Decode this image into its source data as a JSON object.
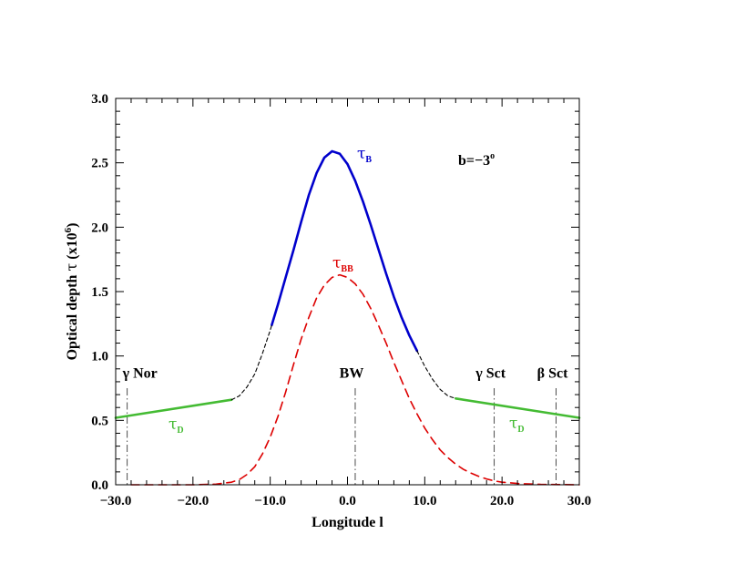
{
  "chart_data": {
    "type": "line",
    "xlabel": "Longitude l",
    "ylabel_main": "Optical depth ",
    "ylabel_tau": "τ",
    "ylabel_factor": " (x10",
    "ylabel_exp": "6",
    "ylabel_close": ")",
    "xlim": [
      -30,
      30
    ],
    "ylim": [
      0,
      3
    ],
    "grid": false,
    "x_ticks": [
      -30,
      -20,
      -10,
      0,
      10,
      20,
      30
    ],
    "x_tick_labels": [
      "−30.0",
      "−20.0",
      "−10.0",
      "0.0",
      "10.0",
      "20.0",
      "30.0"
    ],
    "y_ticks": [
      0,
      0.5,
      1,
      1.5,
      2,
      2.5,
      3
    ],
    "y_tick_labels": [
      "0.0",
      "0.5",
      "1.0",
      "1.5",
      "2.0",
      "2.5",
      "3.0"
    ],
    "series": [
      {
        "label_symbol": "τ",
        "label_sub": "B",
        "color": "#0000cc",
        "style": "solid",
        "points": [
          [
            -9.8,
            1.24
          ],
          [
            -9,
            1.4
          ],
          [
            -8,
            1.61
          ],
          [
            -7,
            1.82
          ],
          [
            -6,
            2.04
          ],
          [
            -5,
            2.25
          ],
          [
            -4,
            2.42
          ],
          [
            -3,
            2.54
          ],
          [
            -2,
            2.59
          ],
          [
            -1,
            2.57
          ],
          [
            0,
            2.49
          ],
          [
            1,
            2.36
          ],
          [
            2,
            2.2
          ],
          [
            3,
            2.02
          ],
          [
            4,
            1.83
          ],
          [
            5,
            1.64
          ],
          [
            6,
            1.46
          ],
          [
            7,
            1.3
          ],
          [
            8,
            1.16
          ],
          [
            9,
            1.04
          ]
        ]
      },
      {
        "label_symbol": "τ",
        "label_sub": "BB",
        "color": "#dd0000",
        "style": "dashed",
        "points": [
          [
            -28,
            0
          ],
          [
            -20,
            0
          ],
          [
            -17,
            0.005
          ],
          [
            -15,
            0.02
          ],
          [
            -14,
            0.04
          ],
          [
            -13,
            0.08
          ],
          [
            -12,
            0.14
          ],
          [
            -11,
            0.24
          ],
          [
            -10,
            0.37
          ],
          [
            -9,
            0.53
          ],
          [
            -8,
            0.72
          ],
          [
            -7,
            0.93
          ],
          [
            -6,
            1.13
          ],
          [
            -5,
            1.3
          ],
          [
            -4,
            1.45
          ],
          [
            -3,
            1.55
          ],
          [
            -2,
            1.61
          ],
          [
            -1,
            1.63
          ],
          [
            0,
            1.61
          ],
          [
            1,
            1.56
          ],
          [
            2,
            1.48
          ],
          [
            3,
            1.37
          ],
          [
            4,
            1.24
          ],
          [
            5,
            1.1
          ],
          [
            6,
            0.95
          ],
          [
            7,
            0.81
          ],
          [
            8,
            0.67
          ],
          [
            9,
            0.55
          ],
          [
            10,
            0.44
          ],
          [
            11,
            0.35
          ],
          [
            12,
            0.27
          ],
          [
            13,
            0.21
          ],
          [
            14,
            0.16
          ],
          [
            15,
            0.12
          ],
          [
            16,
            0.09
          ],
          [
            17,
            0.065
          ],
          [
            18,
            0.045
          ],
          [
            19,
            0.03
          ],
          [
            20,
            0.02
          ],
          [
            22,
            0.01
          ],
          [
            25,
            0.003
          ],
          [
            30,
            0
          ]
        ]
      },
      {
        "label_symbol": "τ",
        "label_sub": "D",
        "color": "#44bb33",
        "style": "solid",
        "segments": [
          [
            [
              -30,
              0.52
            ],
            [
              -15,
              0.66
            ]
          ],
          [
            [
              14,
              0.67
            ],
            [
              30,
              0.52
            ]
          ]
        ]
      },
      {
        "label_symbol": "",
        "label_sub": "",
        "color": "#000000",
        "style": "dashed",
        "segments": [
          [
            [
              -15,
              0.66
            ],
            [
              -14,
              0.69
            ],
            [
              -13,
              0.76
            ],
            [
              -12,
              0.86
            ],
            [
              -11,
              1.02
            ],
            [
              -10,
              1.2
            ],
            [
              -9.8,
              1.24
            ]
          ],
          [
            [
              9,
              1.04
            ],
            [
              10,
              0.92
            ],
            [
              11,
              0.82
            ],
            [
              12,
              0.74
            ],
            [
              13,
              0.69
            ],
            [
              14,
              0.67
            ]
          ]
        ]
      }
    ],
    "annotations": [
      {
        "text": "γ Nor",
        "x": -28.5
      },
      {
        "text": "BW",
        "x": 1
      },
      {
        "text": "γ Sct",
        "x": 19
      },
      {
        "text": "β Sct",
        "x": 27
      }
    ],
    "corner_label_main": "b=−3",
    "corner_label_sup": "o"
  }
}
